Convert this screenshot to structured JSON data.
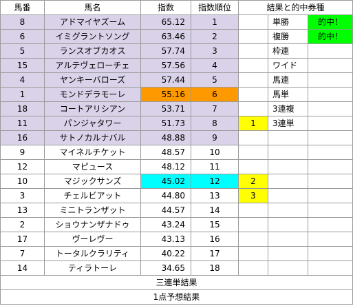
{
  "headers": {
    "umaban": "馬番",
    "bamei": "馬名",
    "shisu": "指数",
    "juni": "指数順位",
    "kekka": "結果と的中券種"
  },
  "rows": [
    {
      "umaban": "8",
      "bamei": "アドマイヤズーム",
      "shisu": "65.12",
      "juni": "1",
      "place": "",
      "bet": "単勝",
      "hit": "的中！"
    },
    {
      "umaban": "6",
      "bamei": "イミグラントソング",
      "shisu": "63.46",
      "juni": "2",
      "place": "",
      "bet": "複勝",
      "hit": "的中！"
    },
    {
      "umaban": "5",
      "bamei": "ランスオブカオス",
      "shisu": "57.74",
      "juni": "3",
      "place": "",
      "bet": "枠連",
      "hit": ""
    },
    {
      "umaban": "15",
      "bamei": "アルテヴェローチェ",
      "shisu": "57.56",
      "juni": "4",
      "place": "",
      "bet": "ワイド",
      "hit": ""
    },
    {
      "umaban": "4",
      "bamei": "ヤンキーバローズ",
      "shisu": "57.44",
      "juni": "5",
      "place": "",
      "bet": "馬連",
      "hit": ""
    },
    {
      "umaban": "1",
      "bamei": "モンドデラモーレ",
      "shisu": "55.16",
      "juni": "6",
      "place": "",
      "bet": "馬単",
      "hit": ""
    },
    {
      "umaban": "18",
      "bamei": "コートアリシアン",
      "shisu": "53.71",
      "juni": "7",
      "place": "",
      "bet": "3連複",
      "hit": ""
    },
    {
      "umaban": "11",
      "bamei": "パンジャタワー",
      "shisu": "51.73",
      "juni": "8",
      "place": "1",
      "bet": "3連単",
      "hit": ""
    },
    {
      "umaban": "16",
      "bamei": "サトノカルナバル",
      "shisu": "48.88",
      "juni": "9",
      "place": "",
      "bet": "",
      "hit": ""
    },
    {
      "umaban": "9",
      "bamei": "マイネルチケット",
      "shisu": "48.57",
      "juni": "10",
      "place": "",
      "bet": "",
      "hit": ""
    },
    {
      "umaban": "12",
      "bamei": "マピュース",
      "shisu": "48.12",
      "juni": "11",
      "place": "",
      "bet": "",
      "hit": ""
    },
    {
      "umaban": "10",
      "bamei": "マジックサンズ",
      "shisu": "45.02",
      "juni": "12",
      "place": "2",
      "bet": "",
      "hit": ""
    },
    {
      "umaban": "3",
      "bamei": "チェルビアット",
      "shisu": "44.80",
      "juni": "13",
      "place": "3",
      "bet": "",
      "hit": ""
    },
    {
      "umaban": "13",
      "bamei": "ミニトランザット",
      "shisu": "44.57",
      "juni": "14",
      "place": "",
      "bet": "",
      "hit": ""
    },
    {
      "umaban": "2",
      "bamei": "ショウナンザナドゥ",
      "shisu": "43.24",
      "juni": "15",
      "place": "",
      "bet": "",
      "hit": ""
    },
    {
      "umaban": "17",
      "bamei": "ヴーレヴー",
      "shisu": "43.13",
      "juni": "16",
      "place": "",
      "bet": "",
      "hit": ""
    },
    {
      "umaban": "7",
      "bamei": "トータルクラリティ",
      "shisu": "40.22",
      "juni": "17",
      "place": "",
      "bet": "",
      "hit": ""
    },
    {
      "umaban": "14",
      "bamei": "ティラトーレ",
      "shisu": "34.65",
      "juni": "18",
      "place": "",
      "bet": "",
      "hit": ""
    }
  ],
  "footer": {
    "sanrentan": "三連単結果",
    "ichiten": "1点予想結果"
  },
  "colors": {
    "top_nine_row": "#d9d2e9",
    "rank6_highlight": "#ff9900",
    "rank12_highlight": "#00ffff",
    "finish_place": "#ffff00",
    "hit_badge": "#00ff00"
  }
}
